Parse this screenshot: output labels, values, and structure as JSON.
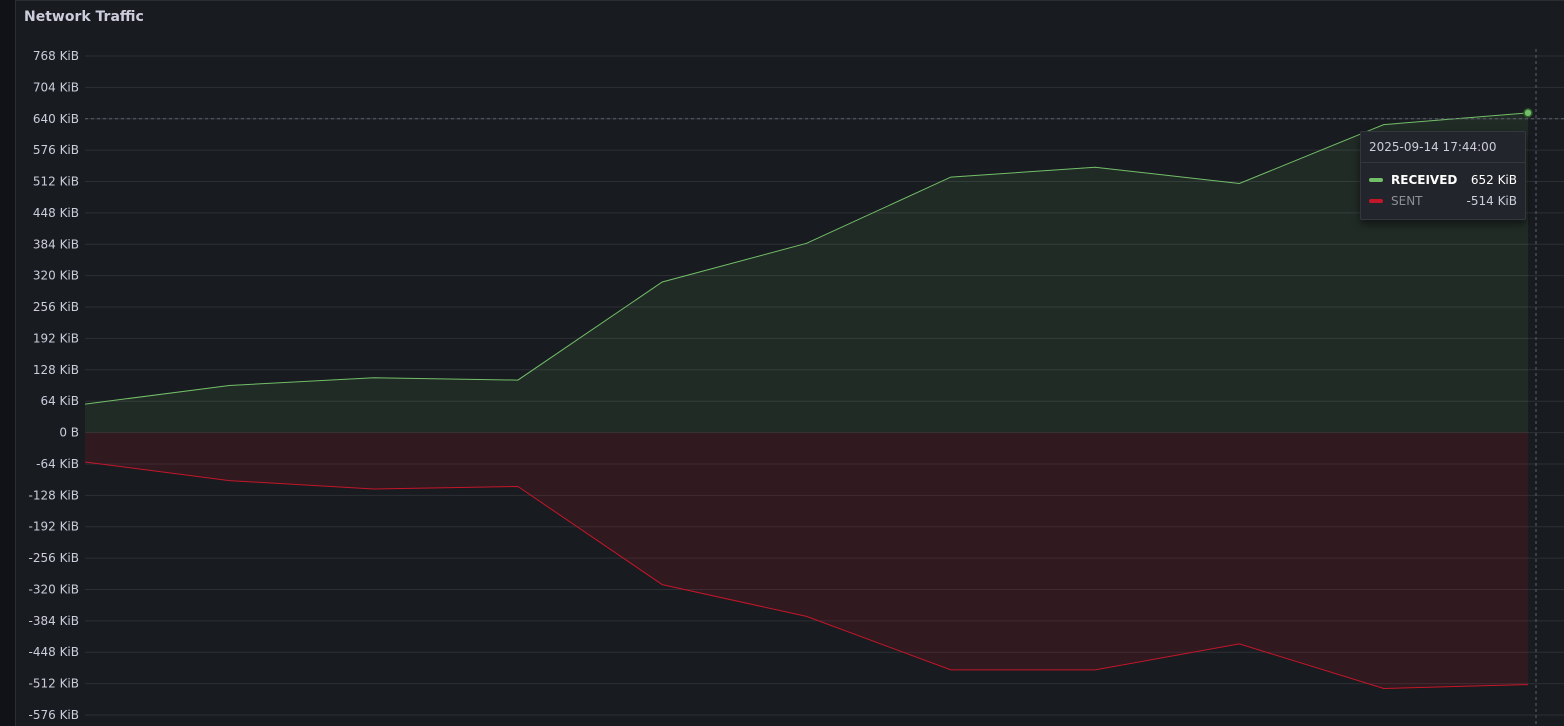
{
  "panel": {
    "title": "Network Traffic"
  },
  "colors": {
    "received": "#73bf69",
    "sent": "#c4162a",
    "grid": "#2c2f35",
    "axis_text": "#ccccdc"
  },
  "chart_data": {
    "type": "area",
    "title": "Network Traffic",
    "ylim": [
      -576,
      768
    ],
    "yunit": "KiB",
    "yticks": [
      768,
      704,
      640,
      576,
      512,
      448,
      384,
      320,
      256,
      192,
      128,
      64,
      0,
      -64,
      -128,
      -192,
      -256,
      -320,
      -384,
      -448,
      -512,
      -576
    ],
    "ytick_labels": [
      "768 KiB",
      "704 KiB",
      "640 KiB",
      "576 KiB",
      "512 KiB",
      "448 KiB",
      "384 KiB",
      "320 KiB",
      "256 KiB",
      "192 KiB",
      "128 KiB",
      "64 KiB",
      "0 B",
      "-64 KiB",
      "-128 KiB",
      "-192 KiB",
      "-256 KiB",
      "-320 KiB",
      "-384 KiB",
      "-448 KiB",
      "-512 KiB",
      "-576 KiB"
    ],
    "x": [
      0,
      1,
      2,
      3,
      4,
      5,
      6,
      7,
      8,
      9,
      10
    ],
    "grid": true,
    "series": [
      {
        "name": "RECEIVED",
        "color": "#73bf69",
        "values": [
          58,
          96,
          112,
          107,
          307,
          386,
          521,
          541,
          508,
          628,
          652
        ]
      },
      {
        "name": "SENT",
        "color": "#c4162a",
        "values": [
          -60,
          -98,
          -115,
          -110,
          -310,
          -375,
          -484,
          -484,
          -431,
          -522,
          -514
        ]
      }
    ],
    "hover": {
      "index": 10,
      "y": 640
    }
  },
  "tooltip": {
    "time": "2025-09-14 17:44:00",
    "rows": [
      {
        "name": "RECEIVED",
        "value": "652 KiB",
        "color": "#73bf69"
      },
      {
        "name": "SENT",
        "value": "-514 KiB",
        "color": "#c4162a"
      }
    ]
  }
}
